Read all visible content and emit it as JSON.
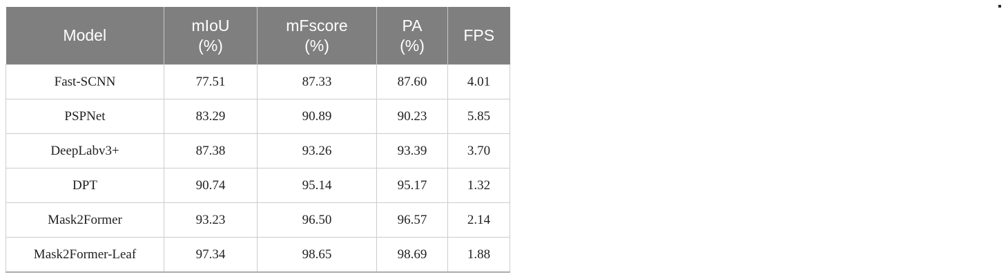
{
  "table": {
    "header_bg": "#7f7f7f",
    "header_text_color": "#ffffff",
    "body_border_color": "#cccccc",
    "columns": [
      "Model",
      "mIoU\n(%)",
      "mFscore\n(%)",
      "PA\n(%)",
      "FPS"
    ],
    "rows": [
      [
        "Fast-SCNN",
        "77.51",
        "87.33",
        "87.60",
        "4.01"
      ],
      [
        "PSPNet",
        "83.29",
        "90.89",
        "90.23",
        "5.85"
      ],
      [
        "DeepLabv3+",
        "87.38",
        "93.26",
        "93.39",
        "3.70"
      ],
      [
        "DPT",
        "90.74",
        "95.14",
        "95.17",
        "1.32"
      ],
      [
        "Mask2Former",
        "93.23",
        "96.50",
        "96.57",
        "2.14"
      ],
      [
        "Mask2Former-Leaf",
        "97.34",
        "98.65",
        "98.69",
        "1.88"
      ]
    ]
  },
  "chart_data": {
    "type": "table",
    "title": "",
    "columns": [
      "Model",
      "mIoU (%)",
      "mFscore (%)",
      "PA (%)",
      "FPS"
    ],
    "rows": [
      [
        "Fast-SCNN",
        77.51,
        87.33,
        87.6,
        4.01
      ],
      [
        "PSPNet",
        83.29,
        90.89,
        90.23,
        5.85
      ],
      [
        "DeepLabv3+",
        87.38,
        93.26,
        93.39,
        3.7
      ],
      [
        "DPT",
        90.74,
        95.14,
        95.17,
        1.32
      ],
      [
        "Mask2Former",
        93.23,
        96.5,
        96.57,
        2.14
      ],
      [
        "Mask2Former-Leaf",
        97.34,
        98.65,
        98.69,
        1.88
      ]
    ]
  }
}
